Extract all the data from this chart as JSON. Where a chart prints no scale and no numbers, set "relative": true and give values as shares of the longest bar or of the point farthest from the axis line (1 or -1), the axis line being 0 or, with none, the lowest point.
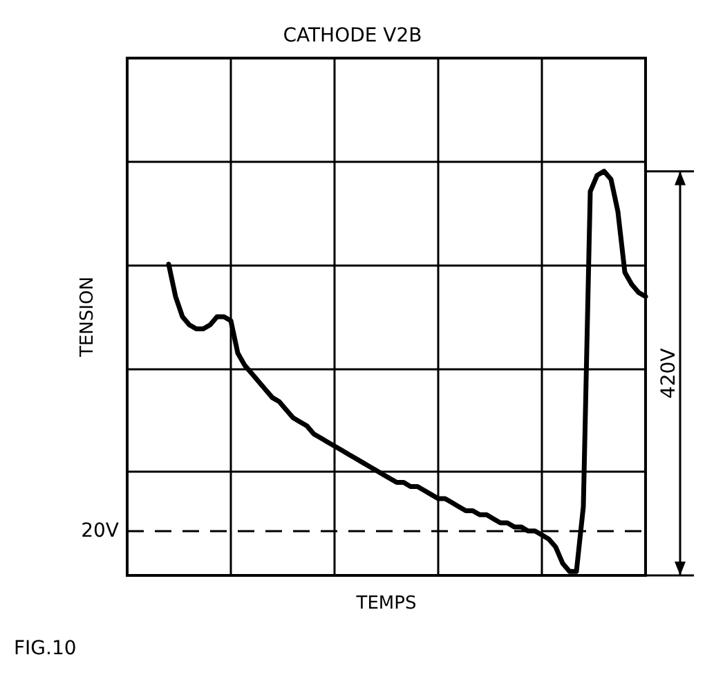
{
  "chart_data": {
    "type": "line",
    "title": "CATHODE V2B",
    "xlabel": "TEMPS",
    "ylabel": "TENSION",
    "relative": true,
    "grid": true,
    "marker": "none",
    "line_style": "solid",
    "categories": [
      null,
      null,
      null,
      null,
      null,
      null,
      null,
      null,
      null,
      null,
      null,
      null,
      null,
      null,
      null,
      null,
      null,
      null,
      null,
      null,
      null,
      null,
      null,
      null,
      null,
      null,
      null,
      null,
      null,
      null,
      null,
      null,
      null,
      null,
      null,
      null,
      null,
      null,
      null,
      null,
      null,
      null,
      null,
      null,
      null,
      null,
      null,
      null,
      null,
      null,
      null,
      null,
      null,
      null,
      null,
      null,
      null,
      null,
      null,
      null,
      null,
      null,
      null,
      null,
      null,
      null,
      null,
      null,
      null,
      null,
      null,
      null,
      null,
      null,
      null,
      null
    ],
    "series": [
      {
        "color": "#000000",
        "values": [
          null,
          null,
          null,
          null,
          null,
          null,
          0.77,
          0.69,
          0.64,
          0.62,
          0.61,
          0.61,
          0.62,
          0.64,
          0.64,
          0.63,
          0.55,
          0.52,
          0.5,
          0.48,
          0.46,
          0.44,
          0.43,
          0.41,
          0.39,
          0.38,
          0.37,
          0.35,
          0.34,
          0.33,
          0.32,
          0.31,
          0.3,
          0.29,
          0.28,
          0.27,
          0.26,
          0.25,
          0.24,
          0.23,
          0.23,
          0.22,
          0.22,
          0.21,
          0.2,
          0.19,
          0.19,
          0.18,
          0.17,
          0.16,
          0.16,
          0.15,
          0.15,
          0.14,
          0.13,
          0.13,
          0.12,
          0.12,
          0.11,
          0.11,
          0.1,
          0.09,
          0.07,
          0.03,
          0.01,
          0.01,
          0.17,
          0.95,
          0.99,
          1,
          0.98,
          0.9,
          0.75,
          0.72,
          0.7,
          0.69
        ]
      }
    ],
    "ref_lines": [
      {
        "axis": "y",
        "value": 0.11,
        "label": "20V",
        "line_style": "dashed"
      }
    ],
    "annotations": [
      "420V",
      "FIG.10"
    ]
  }
}
